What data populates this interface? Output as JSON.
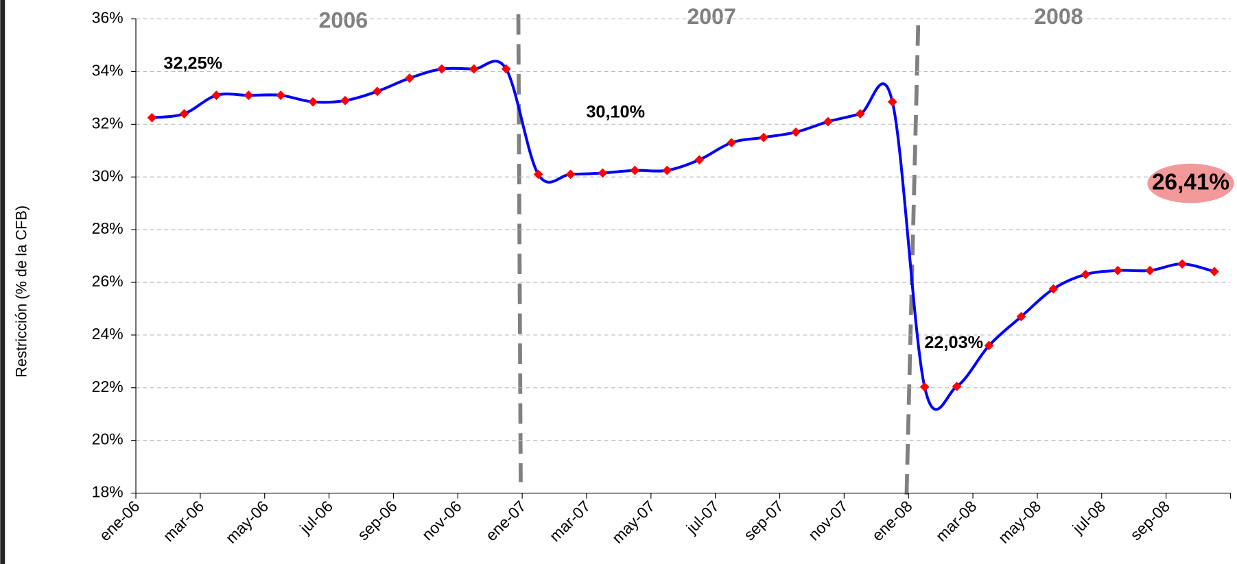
{
  "chart_data": {
    "type": "line",
    "y_label": "Restricción (% de la CFB)",
    "period_labels": [
      "2006",
      "2007",
      "2008"
    ],
    "categories": [
      "ene-06",
      null,
      "mar-06",
      null,
      "may-06",
      null,
      "jul-06",
      null,
      "sep-06",
      null,
      "nov-06",
      null,
      "ene-07",
      null,
      "mar-07",
      null,
      "may-07",
      null,
      "jul-07",
      null,
      "sep-07",
      null,
      "nov-07",
      null,
      "ene-08",
      null,
      "mar-08",
      null,
      "may-08",
      null,
      "jul-08",
      null,
      "sep-08",
      null
    ],
    "series": [
      {
        "color": "#0000ff",
        "marker_color": "#ff0000",
        "values": [
          32.25,
          32.4,
          33.1,
          33.1,
          33.1,
          32.85,
          32.9,
          33.25,
          33.75,
          34.1,
          34.1,
          34.1,
          30.1,
          30.1,
          30.15,
          30.25,
          30.25,
          30.65,
          31.3,
          31.5,
          31.7,
          32.1,
          32.4,
          32.85,
          22.03,
          22.05,
          23.6,
          24.7,
          25.75,
          26.3,
          26.45,
          26.45,
          26.7,
          26.41
        ],
        "value_labels": [
          "32,25%",
          null,
          null,
          null,
          null,
          null,
          null,
          null,
          null,
          null,
          null,
          null,
          "30,10%",
          null,
          null,
          null,
          null,
          null,
          null,
          null,
          null,
          null,
          null,
          null,
          "22,03%",
          null,
          null,
          null,
          null,
          null,
          null,
          null,
          null,
          "26,41%"
        ]
      }
    ],
    "ylim": [
      18,
      36
    ],
    "yticks": [
      {
        "value": 18,
        "label": "18%"
      },
      {
        "value": 20,
        "label": "20%"
      },
      {
        "value": 22,
        "label": "22%"
      },
      {
        "value": 24,
        "label": "24%"
      },
      {
        "value": 26,
        "label": "26%"
      },
      {
        "value": 28,
        "label": "28%"
      },
      {
        "value": 30,
        "label": "30%"
      },
      {
        "value": 32,
        "label": "32%"
      },
      {
        "value": 34,
        "label": "34%"
      },
      {
        "value": 36,
        "label": "36%"
      }
    ],
    "grid": true
  }
}
